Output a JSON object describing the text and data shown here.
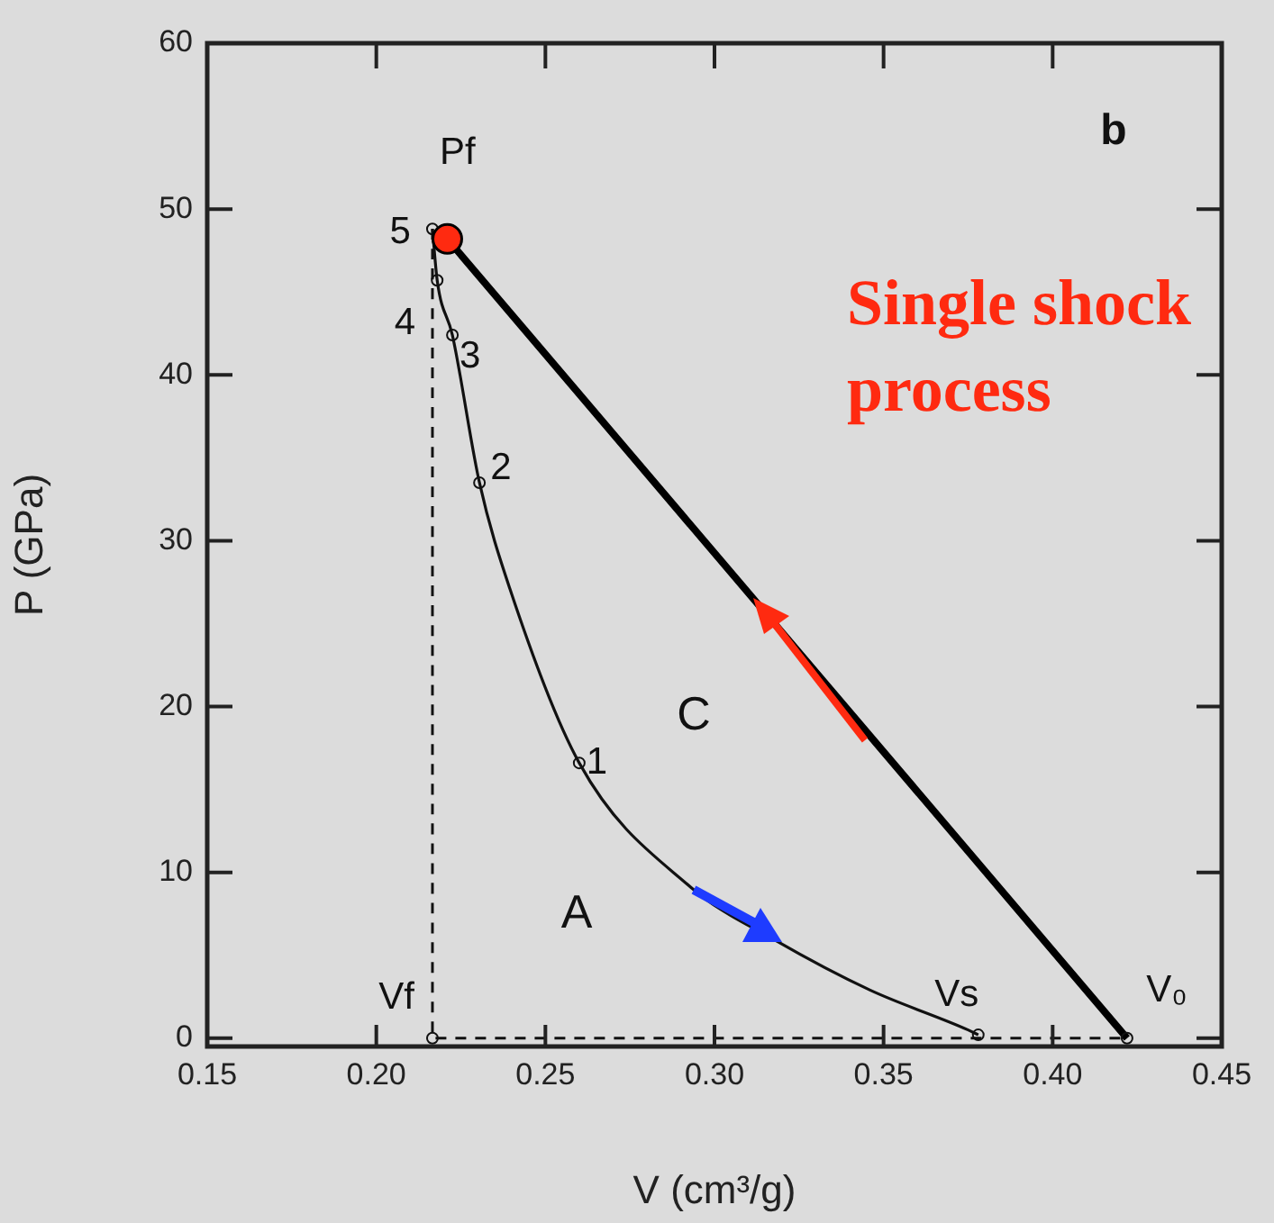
{
  "chart_data": {
    "type": "line",
    "xlabel": "V (cm³/g)",
    "ylabel": "P (GPa)",
    "xlim": [
      0.15,
      0.45
    ],
    "xticks": [
      0.15,
      {
        "value": 0.2,
        "label": "0.20"
      },
      0.25,
      {
        "value": 0.3,
        "label": "0.30"
      },
      0.35,
      {
        "value": 0.4,
        "label": "0.40"
      },
      0.45
    ],
    "ylim": [
      -0.5,
      60
    ],
    "yticks": [
      0,
      10,
      20,
      30,
      40,
      50,
      60
    ],
    "grid": false,
    "legend": false,
    "marker": "none",
    "line_style": "solid",
    "series": [
      {
        "color": "#111111",
        "x": [
          0.2166,
          0.218,
          0.2225,
          0.2305,
          0.2395,
          0.26,
          0.293,
          0.318,
          0.346,
          0.375,
          0.378
        ],
        "values": [
          48.8,
          45.7,
          42.4,
          33.5,
          27.1,
          16.6,
          9.1,
          5.9,
          2.9,
          0.5,
          0.2
        ]
      },
      {
        "color": "#000000",
        "x": [
          0.422,
          0.221
        ],
        "values": [
          0,
          48.2
        ]
      },
      {
        "color": "#111111",
        "line_style": "dashed",
        "x": [
          0.2166,
          0.2166,
          0.422
        ],
        "values": [
          48.8,
          0,
          0
        ]
      },
      {
        "type": "scatter",
        "color": "#111111",
        "marker": "circle",
        "x": [
          0.2166,
          0.218,
          0.2225,
          0.2305,
          0.26,
          0.378,
          0.2166,
          0.422
        ],
        "values": [
          48.8,
          45.7,
          42.4,
          33.5,
          16.6,
          0.2,
          0,
          0
        ]
      },
      {
        "type": "scatter",
        "color": "#ff2a10",
        "marker": "circle",
        "x": [
          0.221
        ],
        "values": [
          48.2
        ]
      }
    ],
    "annotations": [
      "b",
      "Single shock process",
      {
        "text": "Pf",
        "x": 0.2166,
        "y": 48.8
      },
      {
        "text": "5",
        "x": 0.2166,
        "y": 48.8
      },
      {
        "text": "4",
        "x": 0.218,
        "y": 45.7
      },
      {
        "text": "3",
        "x": 0.2225,
        "y": 42.4
      },
      {
        "text": "2",
        "x": 0.2305,
        "y": 33.5
      },
      {
        "text": "1",
        "x": 0.26,
        "y": 16.6
      },
      "C",
      "A",
      {
        "text": "Vf",
        "x": 0.2166,
        "y": 0
      },
      {
        "text": "Vs",
        "x": 0.378,
        "y": 0.2
      },
      {
        "text": "V₀",
        "x": 0.422,
        "y": 0
      }
    ]
  }
}
